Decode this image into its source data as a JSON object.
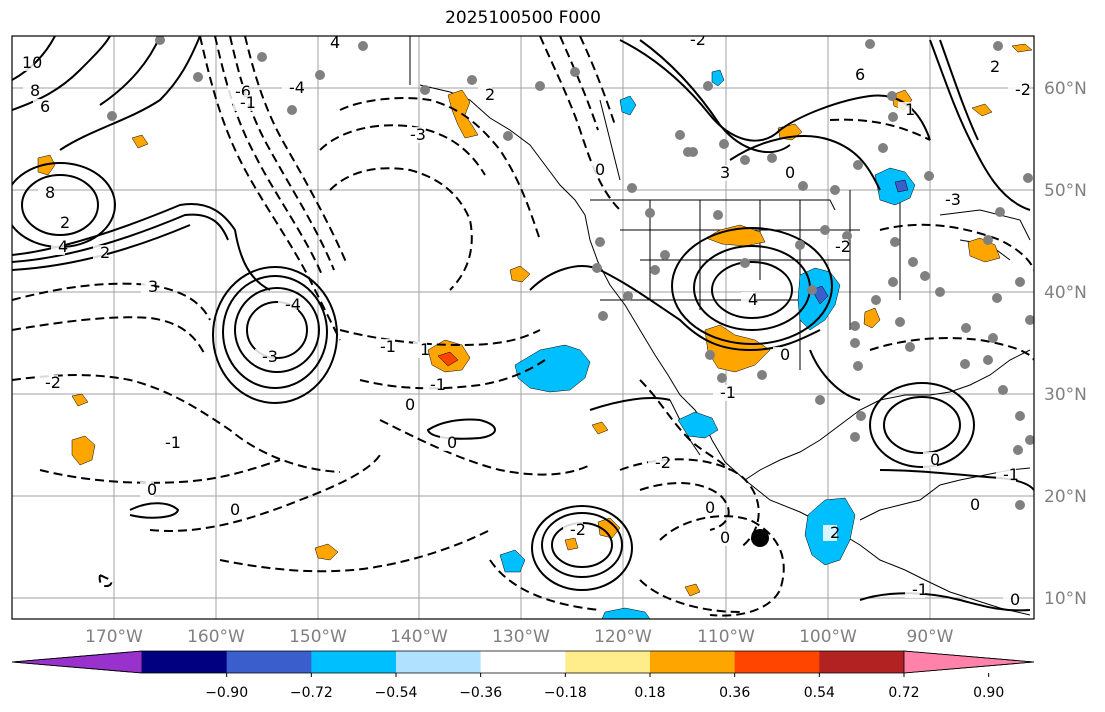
{
  "title": "2025100500 F000",
  "map": {
    "lat_labels": [
      "60°N",
      "50°N",
      "40°N",
      "30°N",
      "20°N",
      "10°N"
    ],
    "lon_labels": [
      "170°W",
      "160°W",
      "150°W",
      "140°W",
      "130°W",
      "120°W",
      "110°W",
      "100°W",
      "90°W"
    ],
    "contour_labels": [
      "10",
      "8",
      "6",
      "8",
      "4",
      "2",
      "3",
      "-4",
      "-3",
      "-2",
      "2",
      "-1",
      "4",
      "-6",
      "-1",
      "2",
      "-3",
      "0",
      "-2",
      "-1",
      "0",
      "0",
      "0",
      "0",
      "-2",
      "0",
      "0",
      "-2",
      "-1",
      "0",
      "-4",
      "-2",
      "3",
      "4",
      "-1",
      "-1",
      "6",
      "1",
      "2",
      "0",
      "-1",
      "0",
      "-3",
      "2",
      "-2",
      "0",
      "1",
      "0"
    ]
  },
  "colorbar": {
    "colors": [
      "#9932cc",
      "#000080",
      "#3a5fcd",
      "#00bfff",
      "#b0e2ff",
      "#ffffff",
      "#ffec8b",
      "#ffa500",
      "#ff4500",
      "#b22222",
      "#ff82ab"
    ],
    "tick_labels": [
      "−0.90",
      "−0.72",
      "−0.54",
      "−0.36",
      "−0.18",
      "0.18",
      "0.36",
      "0.54",
      "0.72",
      "0.90"
    ]
  },
  "colors": {
    "positive_fill": "#ffa500",
    "negative_fill": "#00bfff",
    "strong_positive": "#ff4500",
    "strong_negative": "#3a5fcd",
    "station": "#808080",
    "grid": "#a0a0a0"
  }
}
